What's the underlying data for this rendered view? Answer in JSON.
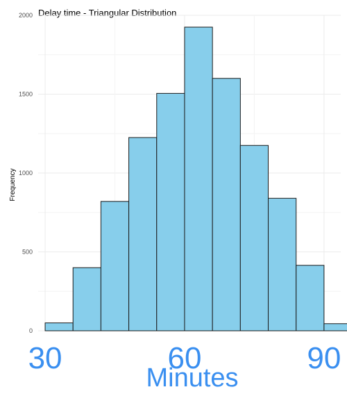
{
  "chart_data": {
    "type": "bar",
    "title": "Delay time -  Triangular Distribution",
    "xlabel": "Minutes",
    "ylabel": "Frequency",
    "xlim": [
      28.5,
      93.6
    ],
    "ylim": [
      0,
      2000
    ],
    "x_ticks": [
      {
        "value": 30,
        "label": "30"
      },
      {
        "value": 60,
        "label": "60"
      },
      {
        "value": 90,
        "label": "90"
      }
    ],
    "y_ticks": [
      {
        "value": 0,
        "label": "0"
      },
      {
        "value": 500,
        "label": "500"
      },
      {
        "value": 1000,
        "label": "1000"
      },
      {
        "value": 1500,
        "label": "1500"
      },
      {
        "value": 2000,
        "label": "2000"
      }
    ],
    "bins": [
      {
        "x0": 30,
        "x1": 36,
        "count": 50
      },
      {
        "x0": 36,
        "x1": 42,
        "count": 400
      },
      {
        "x0": 42,
        "x1": 48,
        "count": 820
      },
      {
        "x0": 48,
        "x1": 54,
        "count": 1225
      },
      {
        "x0": 54,
        "x1": 60,
        "count": 1505
      },
      {
        "x0": 60,
        "x1": 66,
        "count": 1925
      },
      {
        "x0": 66,
        "x1": 72,
        "count": 1600
      },
      {
        "x0": 72,
        "x1": 78,
        "count": 1175
      },
      {
        "x0": 78,
        "x1": 84,
        "count": 840
      },
      {
        "x0": 84,
        "x1": 90,
        "count": 415
      },
      {
        "x0": 90,
        "x1": 96,
        "count": 45
      }
    ],
    "colors": {
      "bar_fill": "#87ceeb",
      "bar_stroke": "#1a1a1a",
      "x_axis_text": "#3a8ff0",
      "grid": "#ebebeb"
    },
    "grid": true
  }
}
